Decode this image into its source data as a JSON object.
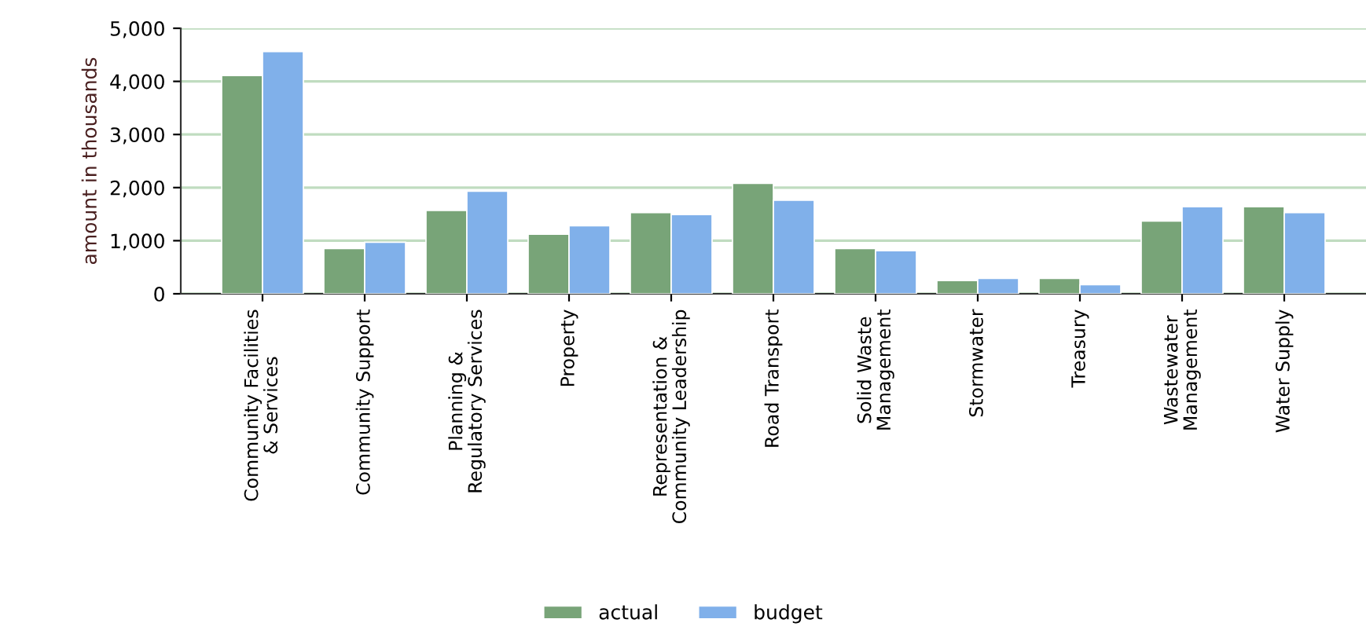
{
  "chart_data": {
    "type": "bar",
    "ylabel": "amount in thousands",
    "categories": [
      "Community Facilities\n& Services",
      "Community Support",
      "Planning &\nRegulatory Services",
      "Property",
      "Representation &\nCommunity Leadership",
      "Road Transport",
      "Solid Waste\nManagement",
      "Stormwater",
      "Treasury",
      "Wastewater\nManagement",
      "Water Supply"
    ],
    "series": [
      {
        "name": "actual",
        "color": "#78a478",
        "values": [
          4110,
          850,
          1570,
          1120,
          1530,
          2080,
          850,
          250,
          290,
          1370,
          1640
        ]
      },
      {
        "name": "budget",
        "color": "#80b0ea",
        "values": [
          4560,
          970,
          1930,
          1280,
          1490,
          1760,
          810,
          290,
          170,
          1640,
          1530
        ]
      }
    ],
    "ylim": [
      0,
      5000
    ],
    "yticks": [
      {
        "value": 0,
        "label": "0"
      },
      {
        "value": 1000,
        "label": "1,000"
      },
      {
        "value": 2000,
        "label": "2,000"
      },
      {
        "value": 3000,
        "label": "3,000"
      },
      {
        "value": 4000,
        "label": "4,000"
      },
      {
        "value": 5000,
        "label": "5,000"
      }
    ],
    "grid": "y",
    "legend": "bottom"
  }
}
